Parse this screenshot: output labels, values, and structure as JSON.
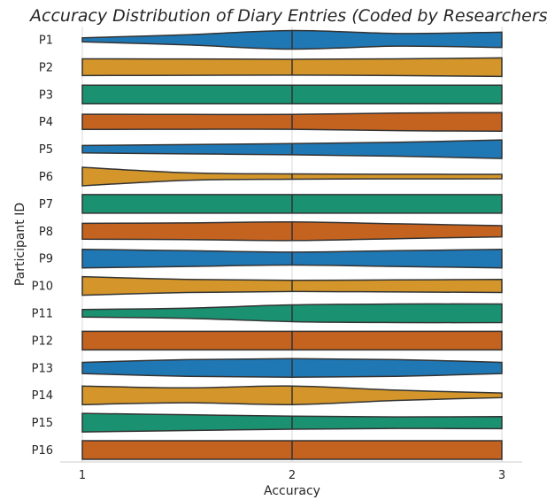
{
  "chart_data": {
    "type": "violin",
    "orientation": "horizontal",
    "title": "Accuracy Distribution of Diary Entries (Coded by Researchers)",
    "xlabel": "Accuracy",
    "ylabel": "Participant ID",
    "xlim": [
      1,
      3
    ],
    "xticks": [
      "1",
      "2",
      "3"
    ],
    "grid": "vertical gridlines at ticks",
    "palette": [
      "#1f77b4",
      "#d4962a",
      "#1a9170",
      "#c4621f"
    ],
    "categories": [
      "P1",
      "P2",
      "P3",
      "P4",
      "P5",
      "P6",
      "P7",
      "P8",
      "P9",
      "P10",
      "P11",
      "P12",
      "P13",
      "P14",
      "P15",
      "P16"
    ],
    "density_at_x": [
      1,
      1.5,
      2,
      2.5,
      3
    ],
    "series": [
      {
        "category": "P1",
        "widths": [
          0.22,
          0.55,
          1.0,
          0.68,
          0.82
        ]
      },
      {
        "category": "P2",
        "widths": [
          0.9,
          0.88,
          0.85,
          0.9,
          1.0
        ]
      },
      {
        "category": "P3",
        "widths": [
          1.0,
          1.0,
          1.0,
          1.0,
          1.0
        ]
      },
      {
        "category": "P4",
        "widths": [
          0.82,
          0.8,
          0.8,
          0.95,
          1.0
        ]
      },
      {
        "category": "P5",
        "widths": [
          0.4,
          0.5,
          0.6,
          0.75,
          1.0
        ]
      },
      {
        "category": "P6",
        "widths": [
          1.0,
          0.4,
          0.28,
          0.25,
          0.24
        ]
      },
      {
        "category": "P7",
        "widths": [
          1.0,
          1.0,
          1.0,
          1.0,
          1.0
        ]
      },
      {
        "category": "P8",
        "widths": [
          0.85,
          0.9,
          1.0,
          0.8,
          0.6
        ]
      },
      {
        "category": "P9",
        "widths": [
          1.0,
          0.85,
          0.7,
          0.85,
          1.0
        ]
      },
      {
        "category": "P10",
        "widths": [
          1.0,
          0.7,
          0.6,
          0.65,
          0.7
        ]
      },
      {
        "category": "P11",
        "widths": [
          0.4,
          0.55,
          0.9,
          1.0,
          1.0
        ]
      },
      {
        "category": "P12",
        "widths": [
          1.0,
          1.0,
          1.0,
          1.0,
          1.0
        ]
      },
      {
        "category": "P13",
        "widths": [
          0.6,
          0.9,
          1.0,
          0.9,
          0.6
        ]
      },
      {
        "category": "P14",
        "widths": [
          1.0,
          0.8,
          1.0,
          0.55,
          0.25
        ]
      },
      {
        "category": "P15",
        "widths": [
          1.0,
          0.85,
          0.7,
          0.62,
          0.65
        ]
      },
      {
        "category": "P16",
        "widths": [
          1.0,
          1.0,
          1.0,
          1.0,
          1.0
        ]
      }
    ]
  }
}
